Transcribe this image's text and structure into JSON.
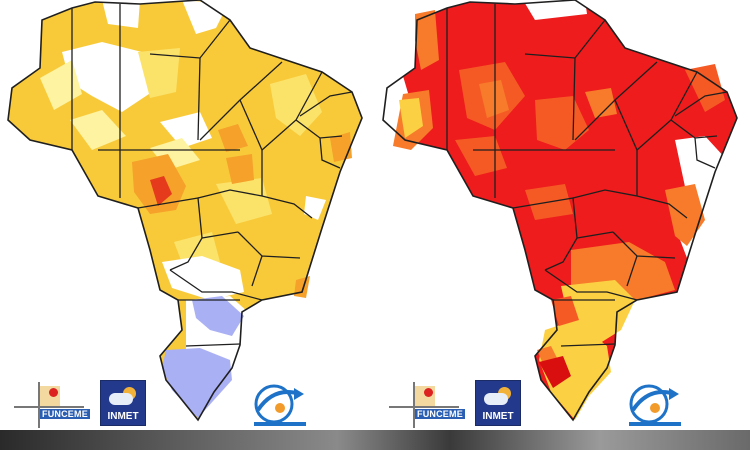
{
  "maps": [
    {
      "id": "left",
      "palette": {
        "outside": "#ffffff",
        "base": "#f8ca3a",
        "light": "#fbe36a",
        "pale": "#fdf3a0",
        "orange": "#f5a12a",
        "red": "#e53a1c",
        "blank": "#ffffff",
        "blue": "#aab0f4",
        "border": "#1f1f1f"
      },
      "logos": {
        "funceme": "FUNCEME",
        "inmet": "INMET",
        "inpe_icon": "inpe-swirl-icon"
      }
    },
    {
      "id": "right",
      "palette": {
        "outside": "#ffffff",
        "base": "#ee1c1c",
        "light": "#f77b2a",
        "pale": "#fbd043",
        "orange": "#f55a25",
        "red": "#d90e0e",
        "blank": "#ffffff",
        "blue": "#fbe36a",
        "border": "#1f1f1f"
      },
      "logos": {
        "funceme": "FUNCEME",
        "inmet": "INMET",
        "inpe_icon": "inpe-swirl-icon"
      }
    }
  ]
}
